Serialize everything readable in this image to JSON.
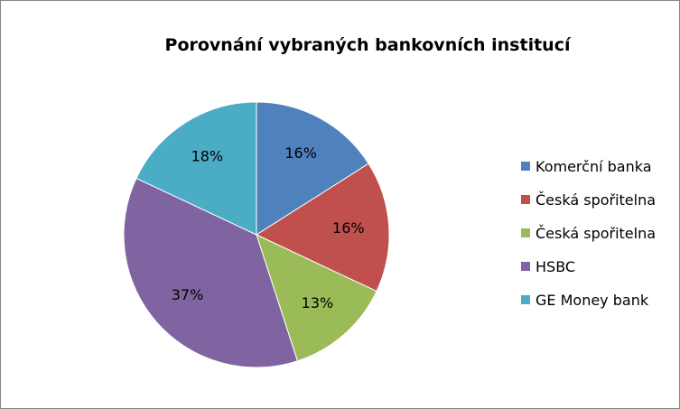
{
  "chart_data": {
    "type": "pie",
    "title": "Porovnání vybraných bankovních institucí",
    "legend_position": "right",
    "slices": [
      {
        "label": "Komerční banka",
        "value": 16,
        "value_label": "16%",
        "color": "#4F81BD"
      },
      {
        "label": "Česká spořitelna",
        "value": 16,
        "value_label": "16%",
        "color": "#C0504D"
      },
      {
        "label": "Česká spořitelna",
        "value": 13,
        "value_label": "13%",
        "color": "#9BBB59"
      },
      {
        "label": "HSBC",
        "value": 37,
        "value_label": "37%",
        "color": "#8064A2"
      },
      {
        "label": "GE Money bank",
        "value": 18,
        "value_label": "18%",
        "color": "#4BACC6"
      }
    ]
  }
}
